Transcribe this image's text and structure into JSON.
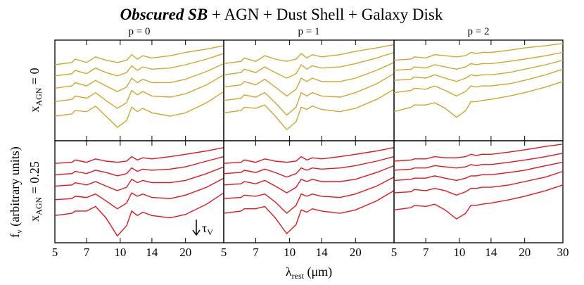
{
  "figure": {
    "title_emph": "Obscured SB",
    "title_rest": "+ AGN + Dust Shell + Galaxy Disk",
    "ylabel": {
      "text": "f",
      "sub": "ν",
      "rest": " (arbitrary units)"
    },
    "xlabel": {
      "text": "λ",
      "sub": "rest",
      "rest": " (μm)"
    },
    "rows": [
      {
        "text": "x",
        "sub": "AGN",
        "rest": " = 0"
      },
      {
        "text": "x",
        "sub": "AGN",
        "rest": " = 0.25"
      }
    ],
    "annotation": {
      "text": "τ",
      "sub": "V"
    }
  },
  "chart_data": [
    {
      "type": "line",
      "title": "p = 0",
      "color": "#d4a52a",
      "xscale": "log",
      "xlim": [
        5,
        30
      ],
      "ylim": [
        2,
        11
      ],
      "xticks": [
        5,
        7,
        10,
        14,
        20,
        30
      ],
      "x": [
        5,
        6,
        6.2,
        7,
        7.7,
        8.6,
        9.7,
        10.7,
        11.3,
        12,
        12.7,
        14,
        17,
        20,
        25,
        30
      ],
      "series": [
        {
          "values": [
            8.8,
            9.0,
            9.3,
            9.0,
            9.5,
            9.2,
            9.0,
            9.2,
            9.7,
            9.3,
            9.6,
            9.4,
            9.6,
            9.9,
            10.2,
            10.5
          ]
        },
        {
          "values": [
            7.8,
            8.0,
            8.3,
            8.0,
            8.5,
            8.1,
            7.8,
            8.1,
            8.7,
            8.3,
            8.6,
            8.4,
            8.5,
            8.8,
            9.3,
            9.8
          ]
        },
        {
          "values": [
            6.7,
            6.9,
            7.2,
            6.9,
            7.4,
            6.9,
            6.4,
            6.8,
            7.6,
            7.2,
            7.5,
            7.2,
            7.2,
            7.5,
            8.2,
            8.9
          ]
        },
        {
          "values": [
            5.5,
            5.7,
            6.0,
            5.8,
            6.3,
            5.6,
            4.9,
            5.4,
            6.5,
            6.1,
            6.4,
            6.0,
            5.9,
            6.2,
            7.0,
            7.9
          ]
        },
        {
          "values": [
            4.2,
            4.4,
            4.7,
            4.6,
            5.1,
            4.2,
            3.2,
            3.8,
            5.0,
            4.6,
            4.9,
            4.5,
            4.2,
            4.5,
            5.4,
            6.4
          ]
        }
      ]
    },
    {
      "type": "line",
      "title": "p = 1",
      "color": "#d4a52a",
      "xscale": "log",
      "xlim": [
        5,
        30
      ],
      "ylim": [
        2,
        11
      ],
      "xticks": [
        5,
        7,
        10,
        14,
        20,
        30
      ],
      "x": [
        5,
        6,
        6.2,
        7,
        7.7,
        8.6,
        9.7,
        10.7,
        11.3,
        12,
        12.7,
        14,
        17,
        20,
        25,
        30
      ],
      "series": [
        {
          "values": [
            8.9,
            9.1,
            9.4,
            9.1,
            9.6,
            9.3,
            9.1,
            9.3,
            9.8,
            9.4,
            9.7,
            9.5,
            9.7,
            10.0,
            10.3,
            10.6
          ]
        },
        {
          "values": [
            7.9,
            8.1,
            8.4,
            8.1,
            8.6,
            8.1,
            7.6,
            8.0,
            8.8,
            8.4,
            8.7,
            8.5,
            8.6,
            8.9,
            9.4,
            9.9
          ]
        },
        {
          "values": [
            6.8,
            7.0,
            7.3,
            7.0,
            7.5,
            6.8,
            6.0,
            6.6,
            7.6,
            7.3,
            7.6,
            7.3,
            7.3,
            7.6,
            8.3,
            9.0
          ]
        },
        {
          "values": [
            5.6,
            5.8,
            6.1,
            5.9,
            6.3,
            5.4,
            4.3,
            5.0,
            6.3,
            6.0,
            6.3,
            6.0,
            5.9,
            6.3,
            7.1,
            8.0
          ]
        },
        {
          "values": [
            4.5,
            4.7,
            5.0,
            4.9,
            5.2,
            4.2,
            3.0,
            3.7,
            5.0,
            4.8,
            5.1,
            4.8,
            4.6,
            4.9,
            5.7,
            6.6
          ]
        }
      ]
    },
    {
      "type": "line",
      "title": "p = 2",
      "color": "#d4a52a",
      "xscale": "log",
      "xlim": [
        5,
        30
      ],
      "ylim": [
        2,
        11
      ],
      "xticks": [
        5,
        7,
        10,
        14,
        20,
        30
      ],
      "x": [
        5,
        6,
        6.2,
        7,
        7.7,
        8.6,
        9.7,
        10.7,
        11.3,
        12,
        12.7,
        14,
        17,
        20,
        25,
        30
      ],
      "series": [
        {
          "values": [
            9.2,
            9.3,
            9.5,
            9.4,
            9.7,
            9.6,
            9.5,
            9.6,
            9.9,
            9.8,
            9.9,
            9.9,
            10.1,
            10.3,
            10.5,
            10.7
          ]
        },
        {
          "values": [
            8.3,
            8.4,
            8.6,
            8.5,
            8.8,
            8.6,
            8.4,
            8.6,
            8.9,
            8.8,
            8.9,
            8.9,
            9.1,
            9.3,
            9.6,
            9.9
          ]
        },
        {
          "values": [
            7.4,
            7.5,
            7.7,
            7.6,
            7.9,
            7.6,
            7.3,
            7.6,
            7.9,
            7.8,
            7.9,
            7.9,
            8.1,
            8.4,
            8.8,
            9.2
          ]
        },
        {
          "values": [
            6.3,
            6.5,
            6.7,
            6.6,
            6.9,
            6.5,
            6.0,
            6.4,
            6.9,
            6.8,
            6.9,
            6.9,
            7.1,
            7.4,
            7.9,
            8.4
          ]
        },
        {
          "values": [
            4.6,
            5.0,
            5.2,
            5.2,
            5.4,
            4.9,
            4.1,
            4.7,
            5.5,
            5.5,
            5.6,
            5.7,
            6.0,
            6.3,
            6.8,
            7.3
          ]
        }
      ]
    },
    {
      "type": "line",
      "color": "#e8141c",
      "xscale": "log",
      "xlim": [
        5,
        30
      ],
      "ylim": [
        2,
        11
      ],
      "xticks": [
        5,
        7,
        10,
        14,
        20
      ],
      "x": [
        5,
        6,
        6.2,
        7,
        7.7,
        8.6,
        9.7,
        10.7,
        11.3,
        12,
        12.7,
        14,
        17,
        20,
        25,
        30
      ],
      "series": [
        {
          "values": [
            9.0,
            9.1,
            9.3,
            9.1,
            9.4,
            9.2,
            9.1,
            9.2,
            9.6,
            9.3,
            9.5,
            9.4,
            9.6,
            9.8,
            10.1,
            10.4
          ]
        },
        {
          "values": [
            8.0,
            8.1,
            8.3,
            8.1,
            8.4,
            8.2,
            7.9,
            8.1,
            8.6,
            8.3,
            8.5,
            8.4,
            8.5,
            8.7,
            9.2,
            9.6
          ]
        },
        {
          "values": [
            7.0,
            7.1,
            7.3,
            7.1,
            7.4,
            7.0,
            6.6,
            6.9,
            7.6,
            7.3,
            7.5,
            7.3,
            7.3,
            7.5,
            8.1,
            8.7
          ]
        },
        {
          "values": [
            5.8,
            5.9,
            6.1,
            6.0,
            6.3,
            5.7,
            5.0,
            5.5,
            6.4,
            6.1,
            6.3,
            6.0,
            5.9,
            6.2,
            6.9,
            7.7
          ]
        },
        {
          "values": [
            4.4,
            4.6,
            4.8,
            4.8,
            5.2,
            4.2,
            2.6,
            3.5,
            4.8,
            4.4,
            4.7,
            4.4,
            4.2,
            4.5,
            5.4,
            6.4
          ]
        }
      ]
    },
    {
      "type": "line",
      "color": "#e8141c",
      "xscale": "log",
      "xlim": [
        5,
        30
      ],
      "ylim": [
        2,
        11
      ],
      "xticks": [
        5,
        7,
        10,
        14,
        20
      ],
      "x": [
        5,
        6,
        6.2,
        7,
        7.7,
        8.6,
        9.7,
        10.7,
        11.3,
        12,
        12.7,
        14,
        17,
        20,
        25,
        30
      ],
      "series": [
        {
          "values": [
            9.0,
            9.1,
            9.3,
            9.1,
            9.4,
            9.2,
            9.1,
            9.2,
            9.6,
            9.3,
            9.5,
            9.4,
            9.6,
            9.8,
            10.1,
            10.4
          ]
        },
        {
          "values": [
            8.1,
            8.2,
            8.4,
            8.2,
            8.5,
            8.2,
            7.8,
            8.1,
            8.6,
            8.4,
            8.6,
            8.5,
            8.6,
            8.8,
            9.2,
            9.6
          ]
        },
        {
          "values": [
            7.1,
            7.2,
            7.4,
            7.2,
            7.5,
            7.0,
            6.4,
            6.9,
            7.6,
            7.4,
            7.6,
            7.4,
            7.4,
            7.6,
            8.2,
            8.8
          ]
        },
        {
          "values": [
            5.9,
            6.0,
            6.2,
            6.1,
            6.3,
            5.6,
            4.6,
            5.3,
            6.3,
            6.1,
            6.3,
            6.1,
            6.0,
            6.3,
            7.0,
            7.8
          ]
        },
        {
          "values": [
            4.6,
            4.8,
            5.0,
            5.0,
            5.2,
            4.2,
            2.8,
            3.6,
            4.9,
            4.7,
            5.0,
            4.8,
            4.6,
            4.9,
            5.7,
            6.6
          ]
        }
      ]
    },
    {
      "type": "line",
      "color": "#e8141c",
      "xscale": "log",
      "xlim": [
        5,
        30
      ],
      "ylim": [
        2,
        11
      ],
      "xticks": [
        5,
        7,
        10,
        14,
        20,
        30
      ],
      "x": [
        5,
        6,
        6.2,
        7,
        7.7,
        8.6,
        9.7,
        10.7,
        11.3,
        12,
        12.7,
        14,
        17,
        20,
        25,
        30
      ],
      "series": [
        {
          "values": [
            9.2,
            9.3,
            9.4,
            9.4,
            9.6,
            9.5,
            9.5,
            9.6,
            9.8,
            9.7,
            9.8,
            9.8,
            10.0,
            10.2,
            10.5,
            10.7
          ]
        },
        {
          "values": [
            8.4,
            8.5,
            8.6,
            8.6,
            8.8,
            8.7,
            8.6,
            8.7,
            8.9,
            8.8,
            8.9,
            8.9,
            9.1,
            9.3,
            9.6,
            9.9
          ]
        },
        {
          "values": [
            7.5,
            7.6,
            7.7,
            7.7,
            7.9,
            7.7,
            7.5,
            7.7,
            7.9,
            7.9,
            8.0,
            8.0,
            8.2,
            8.4,
            8.8,
            9.1
          ]
        },
        {
          "values": [
            6.4,
            6.5,
            6.7,
            6.6,
            6.8,
            6.6,
            6.2,
            6.5,
            6.8,
            6.8,
            6.9,
            6.9,
            7.1,
            7.4,
            7.8,
            8.3
          ]
        },
        {
          "values": [
            4.9,
            5.1,
            5.3,
            5.2,
            5.4,
            4.9,
            4.1,
            4.6,
            5.3,
            5.3,
            5.4,
            5.5,
            5.8,
            6.1,
            6.6,
            7.1
          ]
        }
      ]
    }
  ]
}
